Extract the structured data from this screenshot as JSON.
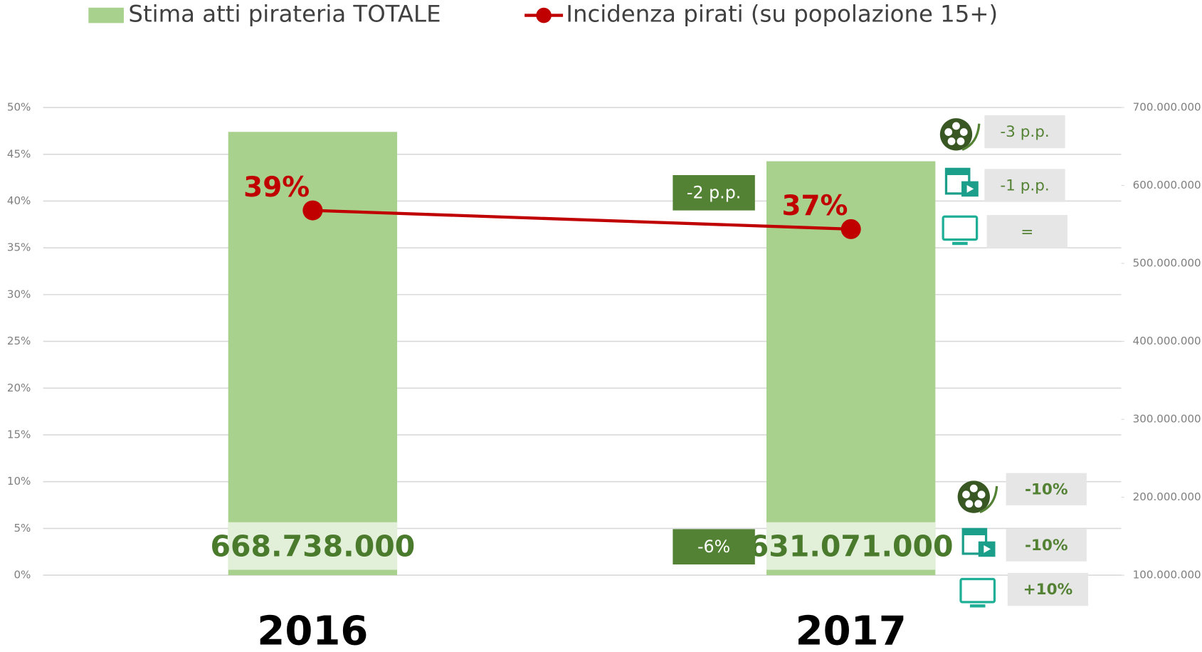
{
  "chart_data": {
    "type": "bar",
    "categories": [
      "2016",
      "2017"
    ],
    "series": [
      {
        "name": "Stima atti pirateria TOTALE",
        "type": "bar",
        "axis": "y2",
        "color": "#a9d18e",
        "values": [
          668738000,
          631071000
        ],
        "value_labels": [
          "668.738.000",
          "631.071.000"
        ]
      },
      {
        "name": "Incidenza pirati (su popolazione 15+)",
        "type": "line",
        "color": "#c00000",
        "values": [
          39,
          37
        ],
        "value_labels": [
          "39%",
          "37%"
        ]
      }
    ],
    "ylim": [
      0,
      50
    ],
    "yticks": [
      {
        "value": 0,
        "label": "0%"
      },
      {
        "value": 5,
        "label": "5%"
      },
      {
        "value": 10,
        "label": "10%"
      },
      {
        "value": 15,
        "label": "15%"
      },
      {
        "value": 20,
        "label": "20%"
      },
      {
        "value": 25,
        "label": "25%"
      },
      {
        "value": 30,
        "label": "30%"
      },
      {
        "value": 35,
        "label": "35%"
      },
      {
        "value": 40,
        "label": "40%"
      },
      {
        "value": 45,
        "label": "45%"
      },
      {
        "value": 50,
        "label": "50%"
      }
    ],
    "y2lim": [
      100000000,
      700000000
    ],
    "y2ticks": [
      {
        "value": 100000000,
        "label": "100.000.000"
      },
      {
        "value": 200000000,
        "label": "200.000.000"
      },
      {
        "value": 300000000,
        "label": "300.000.000"
      },
      {
        "value": 400000000,
        "label": "400.000.000"
      },
      {
        "value": 500000000,
        "label": "500.000.000"
      },
      {
        "value": 600000000,
        "label": "600.000.000"
      },
      {
        "value": 700000000,
        "label": "700.000.000"
      }
    ],
    "grid": true,
    "legend": "top",
    "annotations": [
      {
        "text": "-2 p.p."
      },
      {
        "text": "-6%"
      },
      {
        "text": "-3 p.p."
      },
      {
        "text": "-1 p.p."
      },
      {
        "text": "="
      },
      {
        "text": "-10%"
      },
      {
        "text": "-10%"
      },
      {
        "text": "+10%"
      }
    ]
  }
}
